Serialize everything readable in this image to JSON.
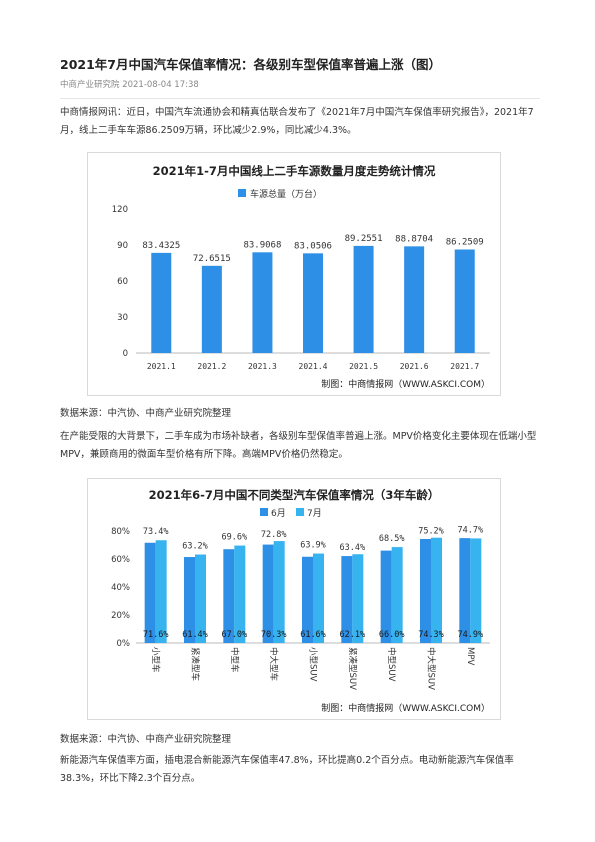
{
  "article": {
    "title": "2021年7月中国汽车保值率情况：各级别车型保值率普遍上涨（图）",
    "meta": "中商产业研究院 2021-08-04 17:38",
    "para1": "中商情报网讯：近日，中国汽车流通协会和精真估联合发布了《2021年7月中国汽车保值率研究报告》，2021年7月，线上二手车车源86.2509万辆，环比减少2.9%，同比减少4.3%。",
    "source1": "数据来源：中汽协、中商产业研究院整理",
    "para2": "在产能受限的大背景下，二手车成为市场补缺者，各级别车型保值率普遍上涨。MPV价格变化主要体现在低端小型MPV，兼顾商用的微面车型价格有所下降。高端MPV价格仍然稳定。",
    "source2": "数据来源：中汽协、中商产业研究院整理",
    "para3": "新能源汽车保值率方面，插电混合新能源汽车保值率47.8%，环比提高0.2个百分点。电动新能源汽车保值率38.3%，环比下降2.3个百分点。"
  },
  "colors": {
    "bar1": "#2d8fe6",
    "bar2": "#37b3ef",
    "text": "#333333",
    "axis": "#bbbbbb"
  },
  "chart_data": [
    {
      "type": "bar",
      "title": "2021年1-7月中国线上二手车源数量月度走势统计情况",
      "categories": [
        "2021.1",
        "2021.2",
        "2021.3",
        "2021.4",
        "2021.5",
        "2021.6",
        "2021.7"
      ],
      "series": [
        {
          "name": "车源总量（万台）",
          "values": [
            83.4325,
            72.6515,
            83.9068,
            83.0506,
            89.2551,
            88.8704,
            86.2509
          ]
        }
      ],
      "data_labels": [
        "83.4325",
        "72.6515",
        "83.9068",
        "83.0506",
        "89.2551",
        "88.8704",
        "86.2509"
      ],
      "yticks": [
        "0",
        "30",
        "60",
        "90",
        "120"
      ],
      "ylim": [
        0,
        120
      ],
      "legend": "top",
      "credit": "制图：中商情报网（WWW.ASKCI.COM）"
    },
    {
      "type": "bar",
      "title": "2021年6-7月中国不同类型汽车保值率情况（3年车龄）",
      "categories": [
        "小型车",
        "紧凑型车",
        "中型车",
        "中大型车",
        "小型SUV",
        "紧凑型SUV",
        "中型SUV",
        "中大型SUV",
        "MPV"
      ],
      "series": [
        {
          "name": "6月",
          "values": [
            71.6,
            61.4,
            67.0,
            70.3,
            61.6,
            62.1,
            66.0,
            74.3,
            74.9
          ]
        },
        {
          "name": "7月",
          "values": [
            73.4,
            63.2,
            69.6,
            72.8,
            63.9,
            63.4,
            68.5,
            75.2,
            74.7
          ]
        }
      ],
      "labels_6": [
        "71.6%",
        "61.4%",
        "67.0%",
        "70.3%",
        "61.6%",
        "62.1%",
        "66.0%",
        "74.3%",
        "74.9%"
      ],
      "labels_7": [
        "73.4%",
        "63.2%",
        "69.6%",
        "72.8%",
        "63.9%",
        "63.4%",
        "68.5%",
        "75.2%",
        "74.7%"
      ],
      "yticks": [
        "0%",
        "20%",
        "40%",
        "60%",
        "80%"
      ],
      "ylim": [
        0,
        80
      ],
      "legend": "top",
      "credit": "制图：中商情报网（WWW.ASKCI.COM）"
    }
  ]
}
